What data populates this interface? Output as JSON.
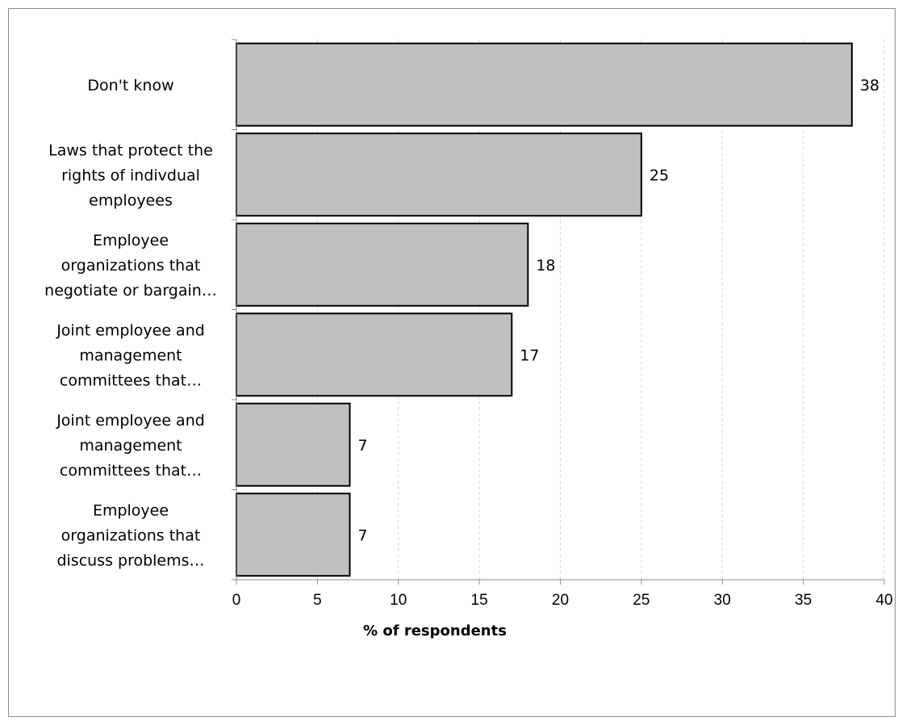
{
  "chart_data": {
    "type": "bar",
    "orientation": "horizontal",
    "categories": [
      [
        "Don't know"
      ],
      [
        "Laws that protect the",
        "rights of indivdual",
        "employees"
      ],
      [
        "Employee",
        "organizations that",
        "negotiate or bargain…"
      ],
      [
        "Joint employee and",
        "management",
        "committees that…"
      ],
      [
        "Joint employee and",
        "management",
        "committees that…"
      ],
      [
        "Employee",
        "organizations that",
        "discuss problems…"
      ]
    ],
    "values": [
      38,
      25,
      18,
      17,
      7,
      7
    ],
    "data_labels": [
      "38",
      "25",
      "18",
      "17",
      "7",
      "7"
    ],
    "xlim": [
      0,
      40
    ],
    "x_ticks": [
      0,
      5,
      10,
      15,
      20,
      25,
      30,
      35,
      40
    ],
    "x_tick_labels": [
      "0",
      "5",
      "10",
      "15",
      "20",
      "25",
      "30",
      "35",
      "40"
    ],
    "xlabel": "% of respondents",
    "ylabel": "",
    "title": "",
    "grid": "vertical dashed",
    "legend": "none",
    "bar_color": "#c0c0c0",
    "bar_edge_color": "#000000",
    "gridline_color": "#d9d9d9"
  }
}
